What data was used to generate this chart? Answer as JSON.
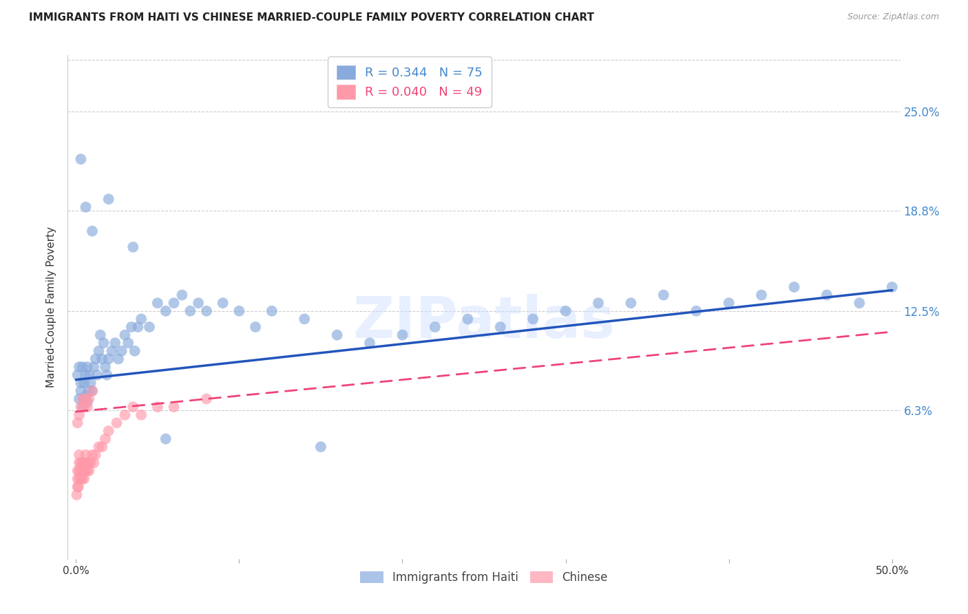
{
  "title": "IMMIGRANTS FROM HAITI VS CHINESE MARRIED-COUPLE FAMILY POVERTY CORRELATION CHART",
  "source": "Source: ZipAtlas.com",
  "ylabel": "Married-Couple Family Poverty",
  "ytick_values": [
    0.063,
    0.125,
    0.188,
    0.25
  ],
  "ytick_labels": [
    "6.3%",
    "12.5%",
    "18.8%",
    "25.0%"
  ],
  "xlim": [
    0.0,
    0.5
  ],
  "ylim": [
    -0.03,
    0.285
  ],
  "legend_haiti_R": "0.344",
  "legend_haiti_N": "75",
  "legend_chinese_R": "0.040",
  "legend_chinese_N": "49",
  "color_haiti": "#88AADD",
  "color_chinese": "#FF99AA",
  "color_haiti_line": "#2255BB",
  "color_chinese_line": "#EE4477",
  "watermark": "ZIPatlas",
  "haiti_x": [
    0.001,
    0.002,
    0.002,
    0.003,
    0.003,
    0.004,
    0.004,
    0.005,
    0.005,
    0.006,
    0.006,
    0.007,
    0.007,
    0.008,
    0.008,
    0.009,
    0.01,
    0.011,
    0.012,
    0.013,
    0.014,
    0.015,
    0.016,
    0.017,
    0.018,
    0.019,
    0.02,
    0.022,
    0.024,
    0.026,
    0.028,
    0.03,
    0.032,
    0.034,
    0.036,
    0.038,
    0.04,
    0.045,
    0.05,
    0.055,
    0.06,
    0.065,
    0.07,
    0.075,
    0.08,
    0.09,
    0.1,
    0.11,
    0.12,
    0.14,
    0.16,
    0.18,
    0.2,
    0.22,
    0.24,
    0.26,
    0.28,
    0.3,
    0.32,
    0.34,
    0.36,
    0.38,
    0.4,
    0.42,
    0.44,
    0.46,
    0.48,
    0.5,
    0.003,
    0.006,
    0.01,
    0.02,
    0.035,
    0.055,
    0.15
  ],
  "haiti_y": [
    0.085,
    0.07,
    0.09,
    0.075,
    0.08,
    0.065,
    0.09,
    0.07,
    0.08,
    0.072,
    0.085,
    0.068,
    0.09,
    0.075,
    0.085,
    0.08,
    0.075,
    0.09,
    0.095,
    0.085,
    0.1,
    0.11,
    0.095,
    0.105,
    0.09,
    0.085,
    0.095,
    0.1,
    0.105,
    0.095,
    0.1,
    0.11,
    0.105,
    0.115,
    0.1,
    0.115,
    0.12,
    0.115,
    0.13,
    0.125,
    0.13,
    0.135,
    0.125,
    0.13,
    0.125,
    0.13,
    0.125,
    0.115,
    0.125,
    0.12,
    0.11,
    0.105,
    0.11,
    0.115,
    0.12,
    0.115,
    0.12,
    0.125,
    0.13,
    0.13,
    0.135,
    0.125,
    0.13,
    0.135,
    0.14,
    0.135,
    0.13,
    0.14,
    0.22,
    0.19,
    0.175,
    0.195,
    0.165,
    0.045,
    0.04
  ],
  "chinese_x": [
    0.0005,
    0.001,
    0.001,
    0.001,
    0.0015,
    0.002,
    0.002,
    0.002,
    0.002,
    0.003,
    0.003,
    0.003,
    0.004,
    0.004,
    0.004,
    0.005,
    0.005,
    0.005,
    0.006,
    0.006,
    0.006,
    0.007,
    0.007,
    0.008,
    0.008,
    0.009,
    0.01,
    0.011,
    0.012,
    0.014,
    0.016,
    0.018,
    0.02,
    0.025,
    0.03,
    0.035,
    0.04,
    0.05,
    0.06,
    0.08,
    0.001,
    0.002,
    0.003,
    0.004,
    0.005,
    0.006,
    0.007,
    0.008,
    0.01
  ],
  "chinese_y": [
    0.01,
    0.015,
    0.02,
    0.025,
    0.015,
    0.02,
    0.025,
    0.03,
    0.035,
    0.02,
    0.025,
    0.03,
    0.02,
    0.025,
    0.03,
    0.02,
    0.025,
    0.03,
    0.025,
    0.03,
    0.035,
    0.025,
    0.03,
    0.025,
    0.03,
    0.03,
    0.035,
    0.03,
    0.035,
    0.04,
    0.04,
    0.045,
    0.05,
    0.055,
    0.06,
    0.065,
    0.06,
    0.065,
    0.065,
    0.07,
    0.055,
    0.06,
    0.065,
    0.07,
    0.065,
    0.07,
    0.065,
    0.07,
    0.075
  ],
  "haiti_line_x0": 0.0,
  "haiti_line_x1": 0.5,
  "haiti_line_y0": 0.082,
  "haiti_line_y1": 0.138,
  "chinese_line_x0": 0.0,
  "chinese_line_x1": 0.5,
  "chinese_line_y0": 0.062,
  "chinese_line_y1": 0.112
}
